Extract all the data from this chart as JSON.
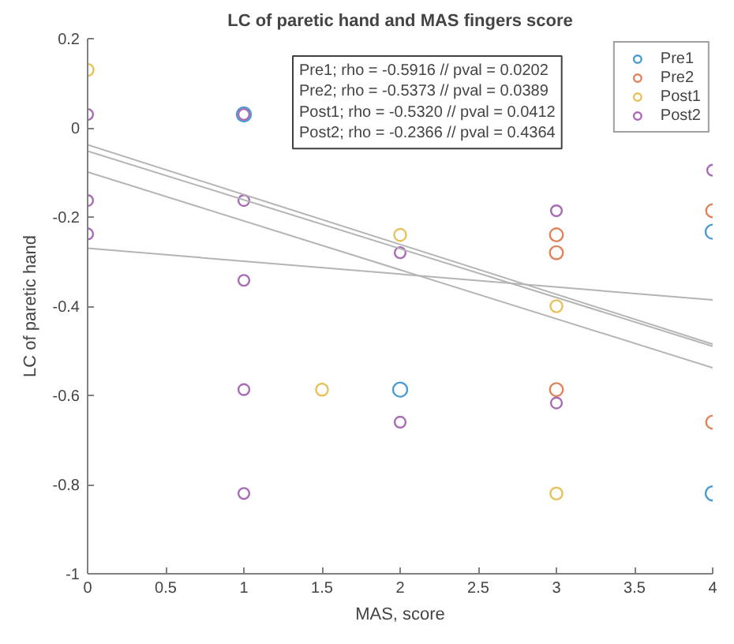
{
  "chart_data": {
    "type": "scatter",
    "title": "LC of paretic hand and MAS fingers score",
    "xlabel": "MAS, score",
    "ylabel": "LC of paretic hand",
    "xlim": [
      0,
      4
    ],
    "ylim": [
      -1,
      0.2
    ],
    "xticks": [
      0,
      0.5,
      1,
      1.5,
      2,
      2.5,
      3,
      3.5,
      4
    ],
    "yticks": [
      -1,
      -0.8,
      -0.6,
      -0.4,
      -0.2,
      0,
      0.2
    ],
    "grid": false,
    "legend": "top right",
    "marker": "circle",
    "annotations": [
      "Pre1; rho = -0.5916 // pval = 0.0202",
      "Pre2; rho = -0.5373 // pval = 0.0389",
      "Post1; rho = -0.5320 // pval = 0.0412",
      "Post2; rho = -0.2366 // pval = 0.4364"
    ],
    "series": [
      {
        "name": "Pre1",
        "color": "#4a9bd4",
        "x": [
          1,
          2,
          4,
          4
        ],
        "values": [
          0.03,
          -0.587,
          -0.233,
          -0.82
        ]
      },
      {
        "name": "Pre2",
        "color": "#e0835a",
        "x": [
          3,
          3,
          3,
          4,
          4
        ],
        "values": [
          -0.24,
          -0.28,
          -0.587,
          -0.186,
          -0.66
        ]
      },
      {
        "name": "Post1",
        "color": "#e8c15a",
        "x": [
          0,
          1.5,
          2,
          3,
          3
        ],
        "values": [
          0.13,
          -0.587,
          -0.24,
          -0.4,
          -0.82
        ]
      },
      {
        "name": "Post2",
        "color": "#a86bb5",
        "x": [
          0,
          0,
          0,
          1,
          1,
          1,
          1,
          1,
          2,
          2,
          3,
          3,
          4
        ],
        "values": [
          0.03,
          -0.163,
          -0.238,
          0.03,
          -0.163,
          -0.342,
          -0.587,
          -0.82,
          -0.28,
          -0.66,
          -0.186,
          -0.617,
          -0.095
        ]
      },
      {
        "type": "line",
        "marker": "none",
        "color": "#b4b4b4",
        "x": [
          0,
          4
        ],
        "values": [
          -0.038,
          -0.485
        ]
      },
      {
        "type": "line",
        "marker": "none",
        "color": "#b4b4b4",
        "x": [
          0,
          4
        ],
        "values": [
          -0.052,
          -0.49
        ]
      },
      {
        "type": "line",
        "marker": "none",
        "color": "#b4b4b4",
        "x": [
          0,
          4
        ],
        "values": [
          -0.099,
          -0.538
        ]
      },
      {
        "type": "line",
        "marker": "none",
        "color": "#b4b4b4",
        "x": [
          0,
          4
        ],
        "values": [
          -0.27,
          -0.386
        ]
      }
    ]
  }
}
